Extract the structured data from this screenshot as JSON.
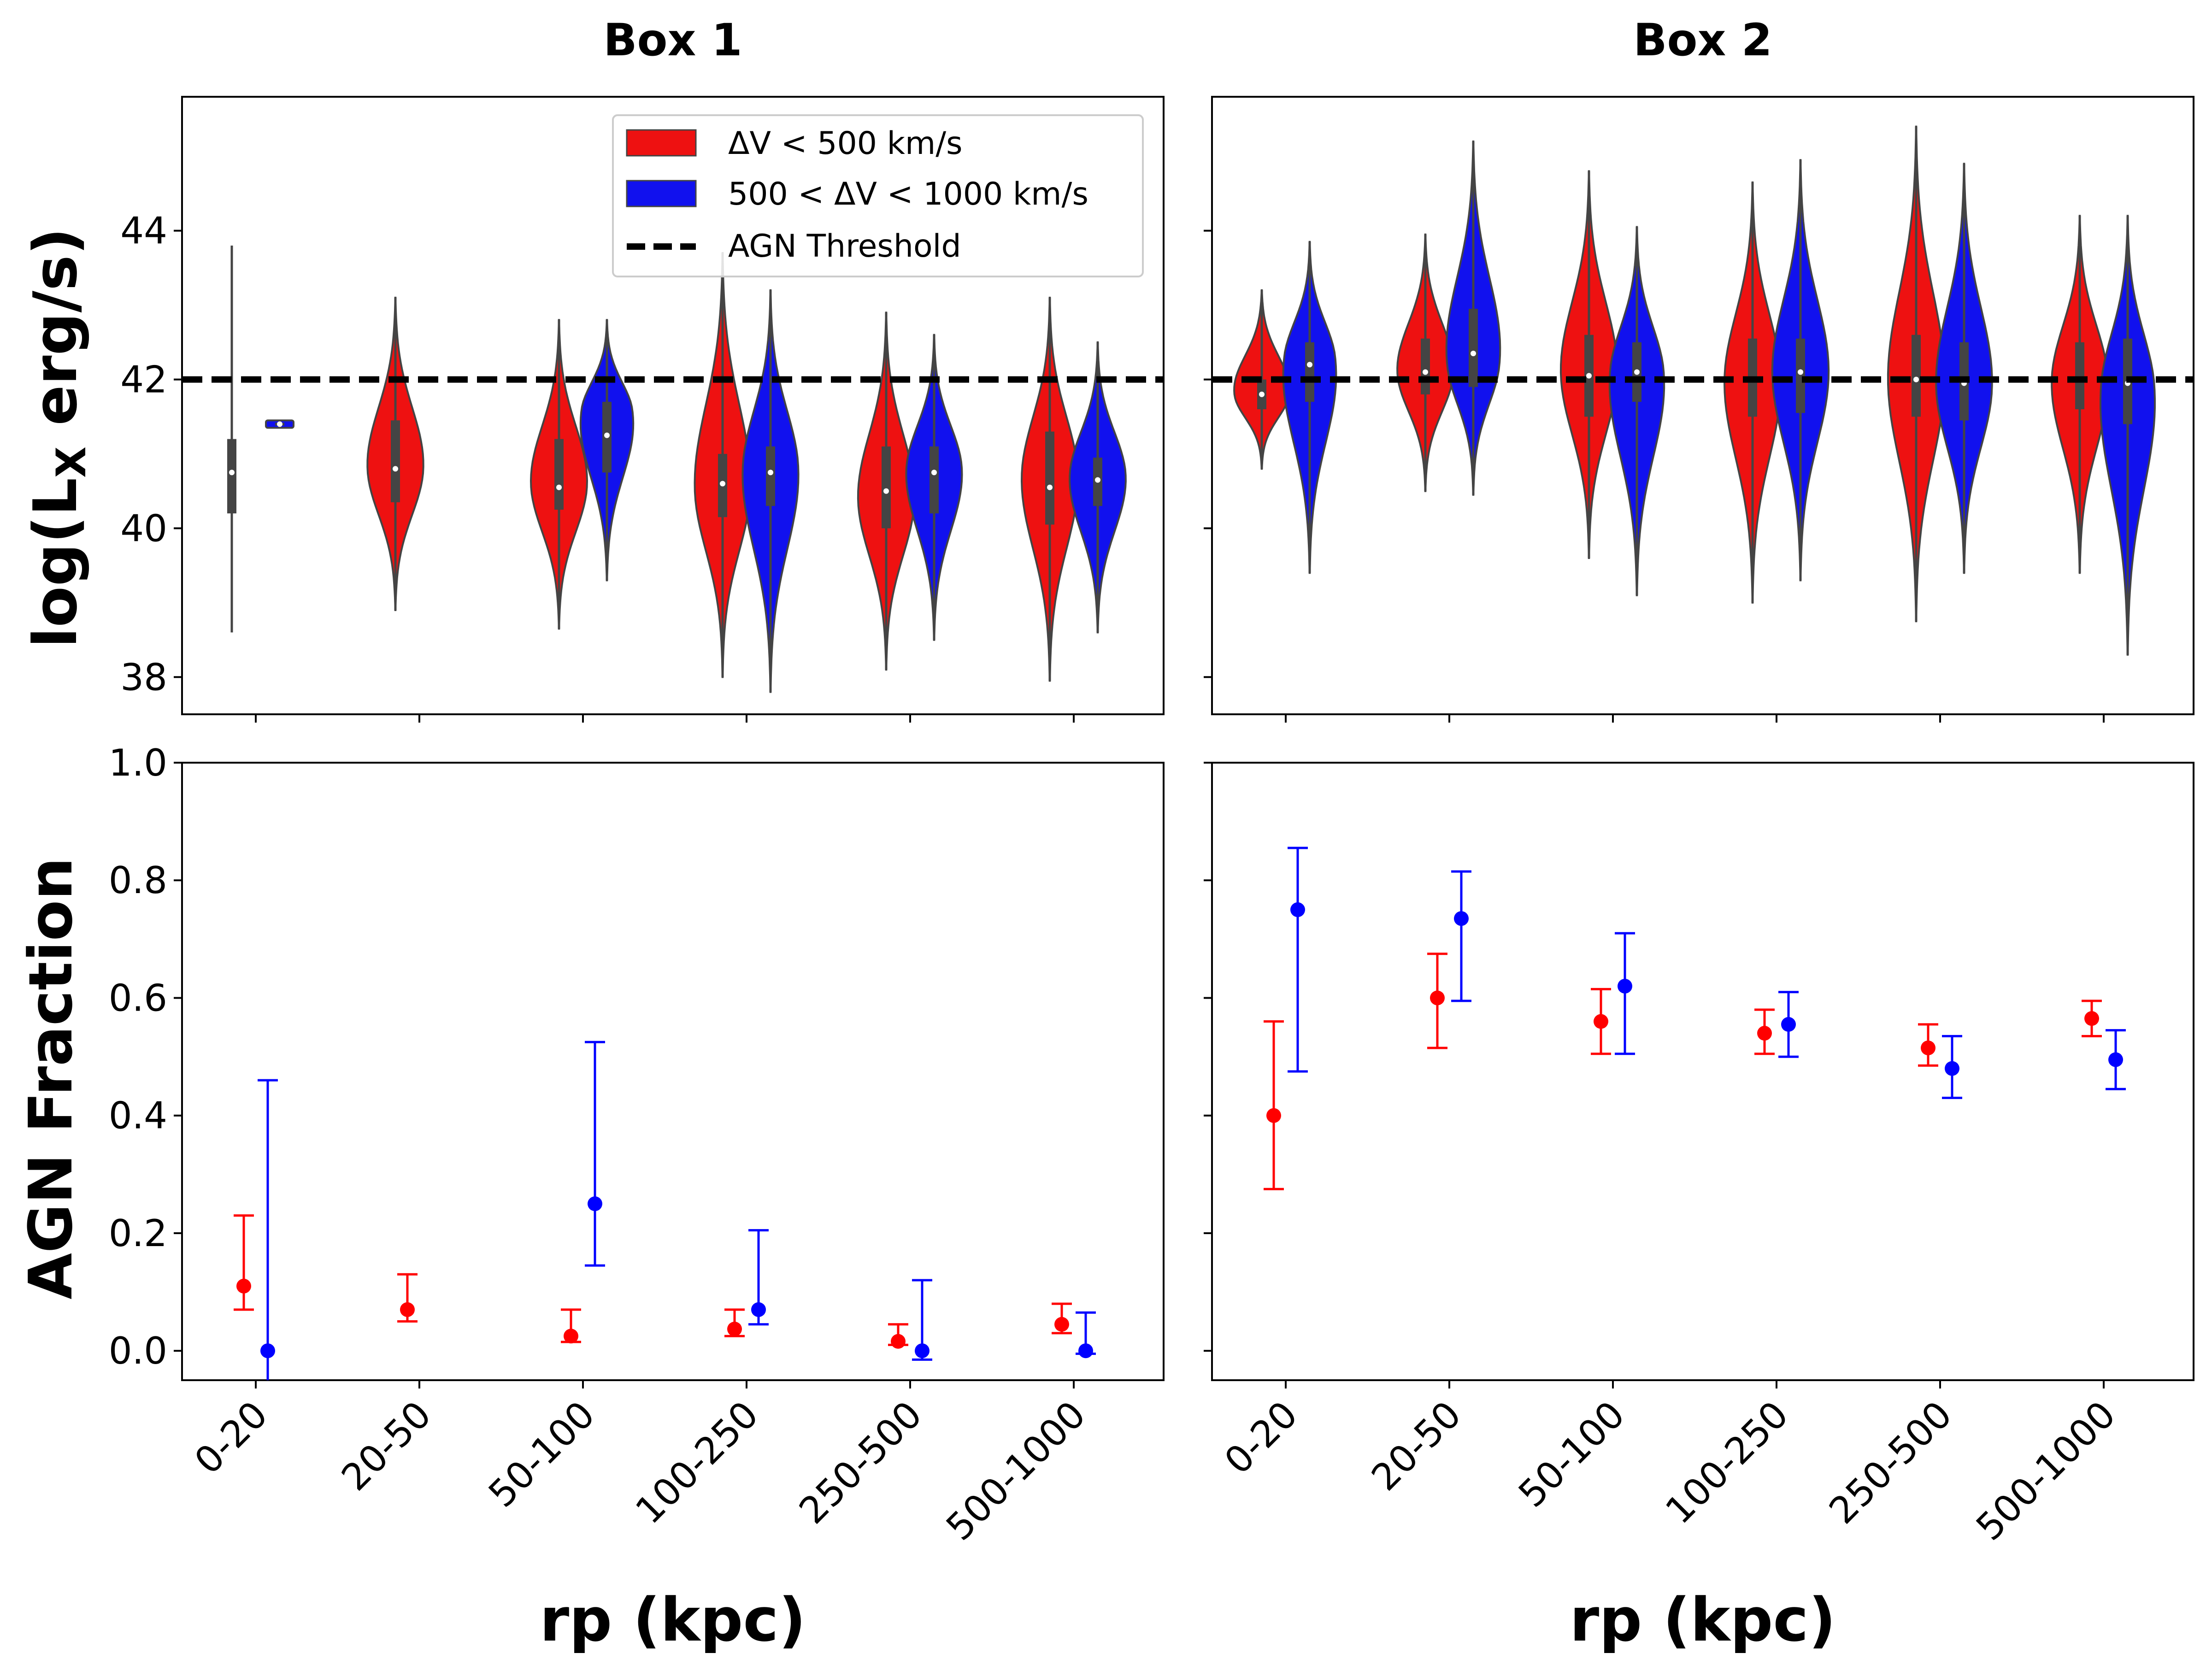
{
  "chart_data": {
    "type": "violin+errorbar",
    "panel_titles": [
      "Box 1",
      "Box 2"
    ],
    "categories": [
      "0-20",
      "20-50",
      "50-100",
      "100-250",
      "250-500",
      "500-1000"
    ],
    "xlabel": "rp (kpc)",
    "top_ylabel": "log(L_X erg/s)",
    "top_ylabel_main": "log(L",
    "top_ylabel_sub": "X",
    "top_ylabel_tail": " erg/s)",
    "bottom_ylabel": "AGN Fraction",
    "top_ylim": [
      37.5,
      45.8
    ],
    "top_yticks": [
      38,
      40,
      42,
      44
    ],
    "bottom_ylim": [
      -0.05,
      1.0
    ],
    "bottom_yticks": [
      "0.0",
      "0.2",
      "0.4",
      "0.6",
      "0.8",
      "1.0"
    ],
    "agn_threshold": 42,
    "legend": [
      "ΔV < 500 km/s",
      "500 < ΔV < 1000 km/s",
      "AGN Threshold"
    ],
    "series_colors": {
      "low": "#ee1111",
      "high": "#1111ee",
      "low_point": "#ff0000",
      "high_point": "#0000ff"
    },
    "violins": {
      "box1": {
        "low": [
          {
            "min": 38.6,
            "max": 43.8,
            "q1": 40.2,
            "median": 40.75,
            "q3": 41.2,
            "width": 0.02
          },
          {
            "min": 38.9,
            "max": 43.1,
            "q1": 40.35,
            "median": 40.8,
            "q3": 41.45,
            "width": 1.0,
            "mode": 40.8
          },
          {
            "min": 38.65,
            "max": 42.8,
            "q1": 40.25,
            "median": 40.55,
            "q3": 41.2,
            "width": 1.0,
            "mode": 40.6
          },
          {
            "min": 38.0,
            "max": 43.7,
            "q1": 40.15,
            "median": 40.6,
            "q3": 41.0,
            "width": 1.0,
            "mode": 40.5
          },
          {
            "min": 38.1,
            "max": 42.9,
            "q1": 40.0,
            "median": 40.5,
            "q3": 41.1,
            "width": 1.0,
            "mode": 40.4
          },
          {
            "min": 37.95,
            "max": 43.1,
            "q1": 40.05,
            "median": 40.55,
            "q3": 41.3,
            "width": 1.0,
            "mode": 40.7
          }
        ],
        "high": [
          {
            "min": 41.35,
            "max": 41.45,
            "q1": 41.38,
            "median": 41.4,
            "q3": 41.42,
            "width": 0.5,
            "flat": true
          },
          null,
          {
            "min": 39.3,
            "max": 42.8,
            "q1": 40.75,
            "median": 41.25,
            "q3": 41.7,
            "width": 1.0,
            "mode": 41.6
          },
          {
            "min": 37.8,
            "max": 43.2,
            "q1": 40.3,
            "median": 40.75,
            "q3": 41.1,
            "width": 1.0,
            "mode": 40.8
          },
          {
            "min": 38.5,
            "max": 42.6,
            "q1": 40.2,
            "median": 40.75,
            "q3": 41.1,
            "width": 1.0,
            "mode": 40.8
          },
          {
            "min": 38.6,
            "max": 42.5,
            "q1": 40.3,
            "median": 40.65,
            "q3": 40.95,
            "width": 1.0,
            "mode": 40.7
          }
        ]
      },
      "box2": {
        "low": [
          {
            "min": 40.8,
            "max": 43.2,
            "q1": 41.6,
            "median": 41.8,
            "q3": 42.0,
            "width": 1.0,
            "mode": 41.8
          },
          {
            "min": 40.5,
            "max": 43.95,
            "q1": 41.8,
            "median": 42.1,
            "q3": 42.55,
            "width": 1.0,
            "mode": 42.1
          },
          {
            "min": 39.6,
            "max": 44.8,
            "q1": 41.5,
            "median": 42.05,
            "q3": 42.6,
            "width": 1.0,
            "mode": 42.1
          },
          {
            "min": 39.0,
            "max": 44.65,
            "q1": 41.5,
            "median": 42.0,
            "q3": 42.55,
            "width": 1.0,
            "mode": 42.0
          },
          {
            "min": 38.75,
            "max": 45.4,
            "q1": 41.5,
            "median": 42.0,
            "q3": 42.6,
            "width": 1.0,
            "mode": 42.0
          },
          {
            "min": 39.4,
            "max": 44.2,
            "q1": 41.6,
            "median": 42.0,
            "q3": 42.5,
            "width": 1.0,
            "mode": 42.0
          }
        ],
        "high": [
          {
            "min": 39.4,
            "max": 43.85,
            "q1": 41.7,
            "median": 42.2,
            "q3": 42.5,
            "width": 1.0,
            "mode": 42.3
          },
          {
            "min": 40.45,
            "max": 45.2,
            "q1": 41.9,
            "median": 42.35,
            "q3": 42.95,
            "width": 1.0,
            "mode": 42.2
          },
          {
            "min": 39.1,
            "max": 44.05,
            "q1": 41.7,
            "median": 42.1,
            "q3": 42.5,
            "width": 1.0,
            "mode": 42.1
          },
          {
            "min": 39.3,
            "max": 44.95,
            "q1": 41.55,
            "median": 42.1,
            "q3": 42.55,
            "width": 1.0,
            "mode": 42.1
          },
          {
            "min": 39.4,
            "max": 44.9,
            "q1": 41.45,
            "median": 41.95,
            "q3": 42.5,
            "width": 1.0,
            "mode": 41.9
          },
          {
            "min": 38.3,
            "max": 44.2,
            "q1": 41.4,
            "median": 41.95,
            "q3": 42.55,
            "width": 1.0,
            "mode": 41.9
          }
        ]
      }
    },
    "agn_fraction": {
      "box1": {
        "low": [
          {
            "y": 0.11,
            "lo": 0.07,
            "hi": 0.23
          },
          {
            "y": 0.07,
            "lo": 0.05,
            "hi": 0.13
          },
          {
            "y": 0.025,
            "lo": 0.015,
            "hi": 0.07
          },
          {
            "y": 0.037,
            "lo": 0.025,
            "hi": 0.07
          },
          {
            "y": 0.016,
            "lo": 0.01,
            "hi": 0.045
          },
          {
            "y": 0.045,
            "lo": 0.03,
            "hi": 0.08
          }
        ],
        "high": [
          {
            "y": 0.0,
            "lo": -0.05,
            "hi": 0.46
          },
          null,
          {
            "y": 0.25,
            "lo": 0.145,
            "hi": 0.525
          },
          {
            "y": 0.07,
            "lo": 0.045,
            "hi": 0.205
          },
          {
            "y": 0.0,
            "lo": -0.015,
            "hi": 0.12
          },
          {
            "y": 0.0,
            "lo": -0.005,
            "hi": 0.065
          }
        ]
      },
      "box2": {
        "low": [
          {
            "y": 0.4,
            "lo": 0.275,
            "hi": 0.56
          },
          {
            "y": 0.6,
            "lo": 0.515,
            "hi": 0.675
          },
          {
            "y": 0.56,
            "lo": 0.505,
            "hi": 0.615
          },
          {
            "y": 0.54,
            "lo": 0.505,
            "hi": 0.58
          },
          {
            "y": 0.515,
            "lo": 0.485,
            "hi": 0.555
          },
          {
            "y": 0.565,
            "lo": 0.535,
            "hi": 0.595
          }
        ],
        "high": [
          {
            "y": 0.75,
            "lo": 0.475,
            "hi": 0.855
          },
          {
            "y": 0.735,
            "lo": 0.595,
            "hi": 0.815
          },
          {
            "y": 0.62,
            "lo": 0.505,
            "hi": 0.71
          },
          {
            "y": 0.555,
            "lo": 0.5,
            "hi": 0.61
          },
          {
            "y": 0.48,
            "lo": 0.43,
            "hi": 0.535
          },
          {
            "y": 0.495,
            "lo": 0.445,
            "hi": 0.545
          }
        ]
      }
    }
  }
}
